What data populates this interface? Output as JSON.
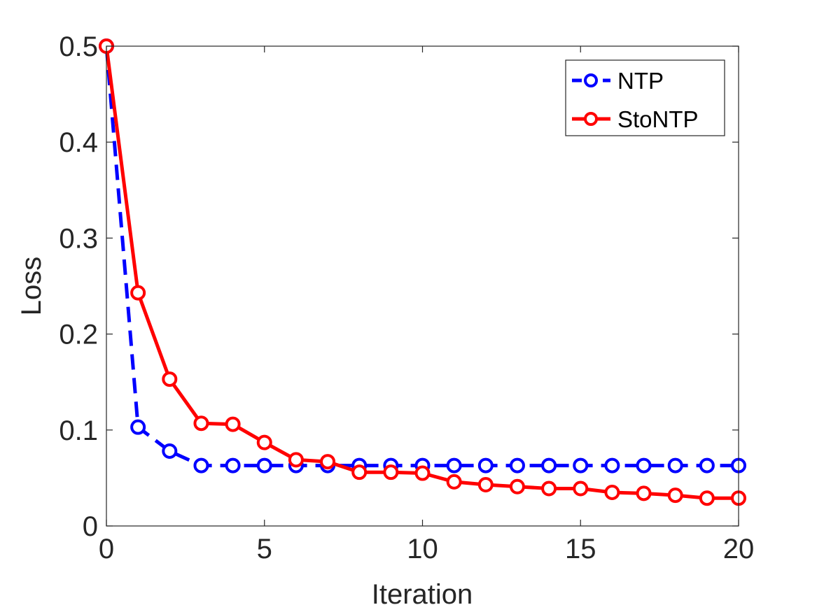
{
  "chart_data": {
    "type": "line",
    "title": "",
    "xlabel": "Iteration",
    "ylabel": "Loss",
    "xlim": [
      0,
      20
    ],
    "ylim": [
      0,
      0.5
    ],
    "xticks": [
      0,
      5,
      10,
      15,
      20
    ],
    "xtick_labels": [
      "0",
      "5",
      "10",
      "15",
      "20"
    ],
    "yticks": [
      0,
      0.1,
      0.2,
      0.3,
      0.4,
      0.5
    ],
    "ytick_labels": [
      "0",
      "0.1",
      "0.2",
      "0.3",
      "0.4",
      "0.5"
    ],
    "grid": false,
    "legend_position": "top-right",
    "x": [
      0,
      1,
      2,
      3,
      4,
      5,
      6,
      7,
      8,
      9,
      10,
      11,
      12,
      13,
      14,
      15,
      16,
      17,
      18,
      19,
      20
    ],
    "series": [
      {
        "name": "NTP",
        "color": "#0000ff",
        "line_style": "dashed",
        "marker": "circle",
        "values": [
          0.5,
          0.103,
          0.078,
          0.063,
          0.063,
          0.063,
          0.063,
          0.063,
          0.063,
          0.063,
          0.063,
          0.063,
          0.063,
          0.063,
          0.063,
          0.063,
          0.063,
          0.063,
          0.063,
          0.063,
          0.063
        ]
      },
      {
        "name": "StoNTP",
        "color": "#ff0000",
        "line_style": "solid",
        "marker": "circle",
        "values": [
          0.5,
          0.243,
          0.153,
          0.107,
          0.106,
          0.087,
          0.069,
          0.067,
          0.056,
          0.056,
          0.055,
          0.046,
          0.043,
          0.041,
          0.039,
          0.039,
          0.035,
          0.034,
          0.032,
          0.029,
          0.029
        ]
      }
    ]
  }
}
